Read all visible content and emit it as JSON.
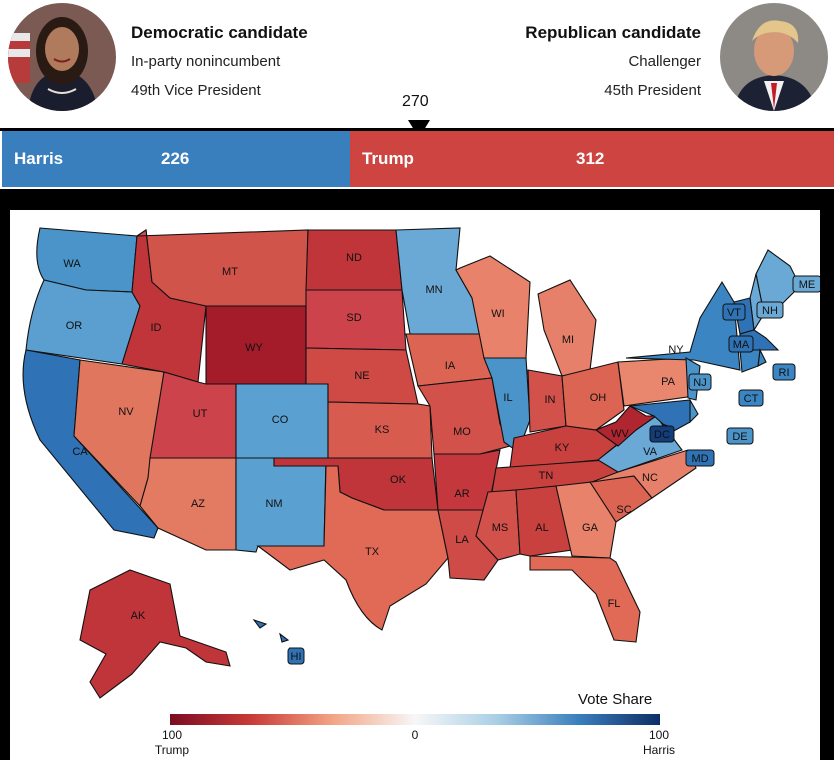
{
  "header": {
    "democrat": {
      "title": "Democratic candidate",
      "status": "In-party nonincumbent",
      "office": "49th Vice President",
      "portrait": "woman-portrait"
    },
    "republican": {
      "title": "Republican candidate",
      "status": "Challenger",
      "office": "45th President",
      "portrait": "man-portrait"
    }
  },
  "electoral_bar": {
    "threshold": "270",
    "harris_label": "Harris",
    "harris_votes": "226",
    "trump_label": "Trump",
    "trump_votes": "312",
    "harris_color": "#3a7fbd",
    "trump_color": "#cd4440"
  },
  "map": {
    "legend_title": "Vote Share",
    "legend_left_value": "100",
    "legend_left_label": "Trump",
    "legend_center_value": "0",
    "legend_right_value": "100",
    "legend_right_label": "Harris",
    "states": [
      {
        "abbr": "WA",
        "color": "#4a94c9"
      },
      {
        "abbr": "OR",
        "color": "#5a9fd0"
      },
      {
        "abbr": "CA",
        "color": "#2f72b5"
      },
      {
        "abbr": "NV",
        "color": "#e0765e"
      },
      {
        "abbr": "ID",
        "color": "#c0353a"
      },
      {
        "abbr": "MT",
        "color": "#d1544a"
      },
      {
        "abbr": "WY",
        "color": "#a41b2a"
      },
      {
        "abbr": "UT",
        "color": "#cc434b"
      },
      {
        "abbr": "AZ",
        "color": "#e37a62"
      },
      {
        "abbr": "CO",
        "color": "#5aa0d1"
      },
      {
        "abbr": "NM",
        "color": "#5aa0d1"
      },
      {
        "abbr": "ND",
        "color": "#c0353a"
      },
      {
        "abbr": "SD",
        "color": "#cc434b"
      },
      {
        "abbr": "NE",
        "color": "#d04a45"
      },
      {
        "abbr": "KS",
        "color": "#d75c4f"
      },
      {
        "abbr": "OK",
        "color": "#c0353a"
      },
      {
        "abbr": "TX",
        "color": "#e06a55"
      },
      {
        "abbr": "MN",
        "color": "#6aa9d5"
      },
      {
        "abbr": "IA",
        "color": "#db6552"
      },
      {
        "abbr": "MO",
        "color": "#d2514a"
      },
      {
        "abbr": "AR",
        "color": "#c4383d"
      },
      {
        "abbr": "LA",
        "color": "#cf4b47"
      },
      {
        "abbr": "WI",
        "color": "#e8826a"
      },
      {
        "abbr": "IL",
        "color": "#4a94c9"
      },
      {
        "abbr": "MI",
        "color": "#e7806a"
      },
      {
        "abbr": "IN",
        "color": "#d2514a"
      },
      {
        "abbr": "OH",
        "color": "#db6552"
      },
      {
        "abbr": "KY",
        "color": "#c8413f"
      },
      {
        "abbr": "TN",
        "color": "#c8413f"
      },
      {
        "abbr": "MS",
        "color": "#d2514a"
      },
      {
        "abbr": "AL",
        "color": "#c8413f"
      },
      {
        "abbr": "GA",
        "color": "#e8826a"
      },
      {
        "abbr": "FL",
        "color": "#e06a55"
      },
      {
        "abbr": "SC",
        "color": "#db6552"
      },
      {
        "abbr": "NC",
        "color": "#e7806a"
      },
      {
        "abbr": "VA",
        "color": "#6aa9d5"
      },
      {
        "abbr": "WV",
        "color": "#b02630"
      },
      {
        "abbr": "PA",
        "color": "#e8866e"
      },
      {
        "abbr": "NY",
        "color": "#3a85c2"
      },
      {
        "abbr": "ME",
        "color": "#6aa9d5"
      },
      {
        "abbr": "NH",
        "color": "#6aa9d5"
      },
      {
        "abbr": "VT",
        "color": "#2f72b5"
      },
      {
        "abbr": "MA",
        "color": "#2f72b5"
      },
      {
        "abbr": "RI",
        "color": "#3a85c2"
      },
      {
        "abbr": "CT",
        "color": "#3a85c2"
      },
      {
        "abbr": "NJ",
        "color": "#4a94c9"
      },
      {
        "abbr": "DE",
        "color": "#4a94c9"
      },
      {
        "abbr": "MD",
        "color": "#2f72b5"
      },
      {
        "abbr": "DC",
        "color": "#123d7a"
      },
      {
        "abbr": "AK",
        "color": "#c0353a"
      },
      {
        "abbr": "HI",
        "color": "#2f72b5"
      }
    ]
  }
}
